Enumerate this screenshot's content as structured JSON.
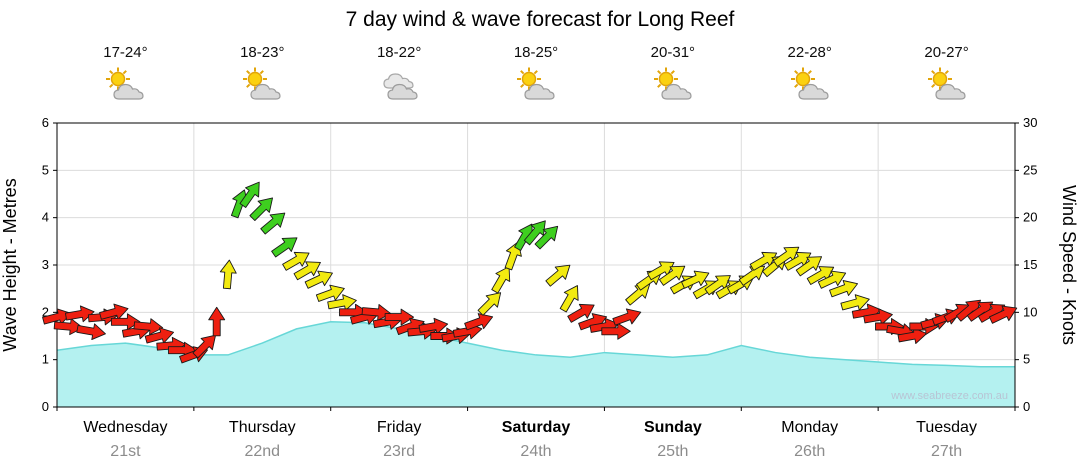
{
  "title": "7 day wind & wave forecast for Long Reef",
  "watermark": "www.seabreeze.com.au",
  "forecast_days": [
    {
      "name": "Wednesday",
      "date": "21st",
      "temp_range": "17-24°",
      "icon": "partly-cloudy",
      "weekend_bold": false
    },
    {
      "name": "Thursday",
      "date": "22nd",
      "temp_range": "18-23°",
      "icon": "partly-cloudy",
      "weekend_bold": false
    },
    {
      "name": "Friday",
      "date": "23rd",
      "temp_range": "18-22°",
      "icon": "cloudy",
      "weekend_bold": false
    },
    {
      "name": "Saturday",
      "date": "24th",
      "temp_range": "18-25°",
      "icon": "partly-cloudy",
      "weekend_bold": true
    },
    {
      "name": "Sunday",
      "date": "25th",
      "temp_range": "20-31°",
      "icon": "partly-cloudy",
      "weekend_bold": true
    },
    {
      "name": "Monday",
      "date": "26th",
      "temp_range": "22-28°",
      "icon": "partly-cloudy",
      "weekend_bold": false
    },
    {
      "name": "Tuesday",
      "date": "27th",
      "temp_range": "20-27°",
      "icon": "partly-cloudy",
      "weekend_bold": false
    }
  ],
  "chart_data": {
    "type": "line",
    "title": "7 day wind & wave forecast for Long Reef",
    "categories_days": [
      "Wednesday 21st",
      "Thursday 22nd",
      "Friday 23rd",
      "Saturday 24th",
      "Sunday 25th",
      "Monday 26th",
      "Tuesday 27th"
    ],
    "x_axis": {
      "unit": "days",
      "range": [
        0,
        7
      ],
      "gridlines_every_days": 1
    },
    "y_left": {
      "label": "Wave Height - Metres",
      "range": [
        0,
        6
      ],
      "ticks": [
        0,
        1,
        2,
        3,
        4,
        5,
        6
      ]
    },
    "y_right": {
      "label": "Wind Speed - Knots",
      "range": [
        0,
        30
      ],
      "ticks": [
        0,
        5,
        10,
        15,
        20,
        25,
        30
      ]
    },
    "wind_speed_colors": {
      "light_red": "#ee1f10",
      "moderate_yellow": "#f2ea10",
      "fresh_green": "#3ecf1f"
    },
    "wind_color_thresholds_knots": {
      "yellow_min": 10.5,
      "green_min": 17
    },
    "wave_style": {
      "fill": "#b4f1f0",
      "stroke": "#67d7d7"
    },
    "series": [
      {
        "name": "Wave Height",
        "type": "area",
        "unit": "m",
        "axis": "left",
        "x_days": [
          0,
          0.25,
          0.5,
          0.75,
          1,
          1.25,
          1.5,
          1.75,
          2,
          2.25,
          2.5,
          2.75,
          3,
          3.25,
          3.5,
          3.75,
          4,
          4.25,
          4.5,
          4.75,
          5,
          5.25,
          5.5,
          5.75,
          6,
          6.25,
          6.5,
          6.75,
          7
        ],
        "values": [
          1.2,
          1.3,
          1.35,
          1.25,
          1.1,
          1.1,
          1.35,
          1.65,
          1.8,
          1.78,
          1.65,
          1.5,
          1.35,
          1.2,
          1.1,
          1.05,
          1.15,
          1.1,
          1.05,
          1.1,
          1.3,
          1.15,
          1.05,
          1.0,
          0.95,
          0.9,
          0.88,
          0.85,
          0.85
        ]
      },
      {
        "name": "Wind Speed",
        "type": "arrow-line",
        "unit": "knots",
        "axis": "right",
        "x_hours": [
          0,
          2,
          4,
          6,
          8,
          10,
          12,
          14,
          16,
          18,
          20,
          22,
          24,
          26,
          28,
          30,
          32,
          34,
          36,
          38,
          40,
          42,
          44,
          46,
          48,
          50,
          52,
          54,
          56,
          58,
          60,
          62,
          64,
          66,
          68,
          70,
          72,
          74,
          76,
          78,
          80,
          82,
          84,
          86,
          88,
          90,
          92,
          94,
          96,
          98,
          100,
          102,
          104,
          106,
          108,
          110,
          112,
          114,
          116,
          118,
          120,
          122,
          124,
          126,
          128,
          130,
          132,
          134,
          136,
          138,
          140,
          142,
          144,
          146,
          148,
          150,
          152,
          154,
          156,
          158,
          160,
          162,
          164,
          166
        ],
        "values": [
          9.5,
          8.5,
          9.8,
          8,
          9.5,
          10,
          9,
          8,
          8.5,
          7.5,
          6.5,
          6,
          5.5,
          6.5,
          9,
          14,
          21.5,
          22.5,
          21,
          19.5,
          17,
          15.5,
          14.5,
          13.5,
          12,
          11,
          10,
          9.5,
          10,
          9,
          9.5,
          8.5,
          8,
          8.5,
          7.5,
          7.5,
          8,
          9,
          11,
          13.5,
          16,
          18,
          18.5,
          18,
          14,
          11.5,
          10,
          9,
          8.5,
          8,
          9.5,
          12,
          13.5,
          14.5,
          14,
          13,
          13.5,
          12.5,
          13,
          12.5,
          13,
          14,
          15.5,
          15,
          16,
          15.5,
          15,
          14,
          13.5,
          12.5,
          11,
          10,
          9.5,
          8.5,
          8,
          7.5,
          8.5,
          9,
          9.5,
          10,
          10.3,
          10.2,
          10,
          9.8
        ],
        "directions_deg": [
          -15,
          5,
          -10,
          10,
          -5,
          -15,
          0,
          -10,
          5,
          -15,
          -5,
          0,
          -20,
          -45,
          -90,
          -85,
          -70,
          -55,
          -45,
          -40,
          -35,
          -30,
          -30,
          -25,
          -20,
          -10,
          0,
          -15,
          5,
          -10,
          0,
          -20,
          -5,
          -10,
          0,
          -10,
          -10,
          -20,
          -45,
          -60,
          -70,
          -60,
          -50,
          -45,
          -40,
          -60,
          -30,
          -20,
          -10,
          0,
          -20,
          -40,
          -35,
          -30,
          -35,
          -30,
          -25,
          -30,
          -35,
          -30,
          -30,
          -35,
          -30,
          -40,
          -35,
          -30,
          -35,
          -30,
          -25,
          -20,
          -15,
          -10,
          -10,
          0,
          10,
          -10,
          0,
          -15,
          -20,
          -30,
          -40,
          -35,
          -30,
          -25
        ]
      }
    ]
  }
}
